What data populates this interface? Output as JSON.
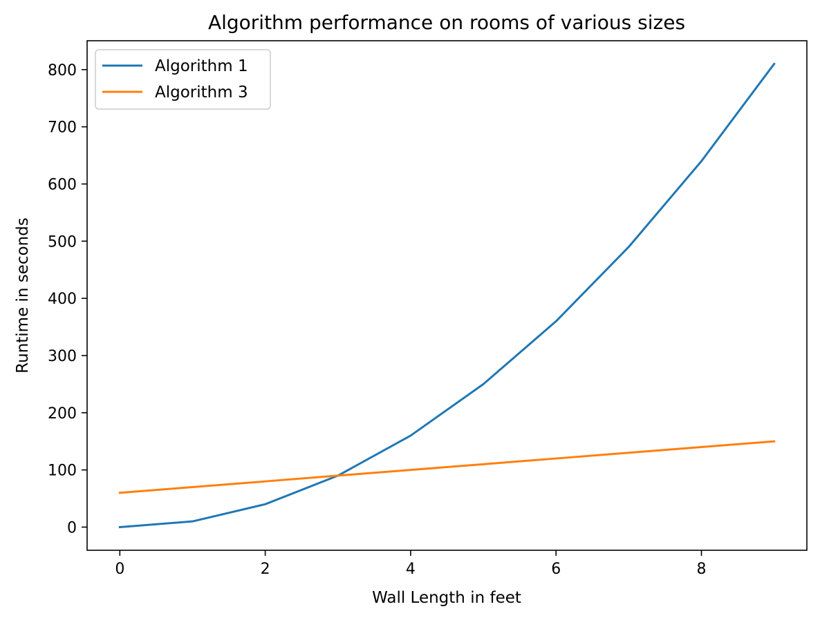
{
  "chart_data": {
    "type": "line",
    "title": "Algorithm performance on rooms of various sizes",
    "xlabel": "Wall Length in feet",
    "ylabel": "Runtime in seconds",
    "x": [
      0,
      1,
      2,
      3,
      4,
      5,
      6,
      7,
      8,
      9
    ],
    "xlim": [
      -0.45,
      9.45
    ],
    "ylim": [
      -40.5,
      850.5
    ],
    "xticks": [
      0,
      2,
      4,
      6,
      8
    ],
    "xtick_labels": [
      "0",
      "2",
      "4",
      "6",
      "8"
    ],
    "yticks": [
      0,
      100,
      200,
      300,
      400,
      500,
      600,
      700,
      800
    ],
    "ytick_labels": [
      "0",
      "100",
      "200",
      "300",
      "400",
      "500",
      "600",
      "700",
      "800"
    ],
    "grid": false,
    "legend_position": "upper-left",
    "series": [
      {
        "name": "Algorithm 1",
        "color": "#1f77b4",
        "values": [
          0,
          10,
          40,
          90,
          160,
          250,
          360,
          490,
          640,
          810
        ]
      },
      {
        "name": "Algorithm 3",
        "color": "#ff7f0e",
        "values": [
          60,
          70,
          80,
          90,
          100,
          110,
          120,
          130,
          140,
          150
        ]
      }
    ]
  }
}
